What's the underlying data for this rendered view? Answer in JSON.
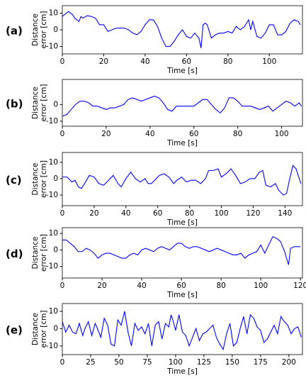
{
  "chart_data": [
    {
      "type": "line",
      "label": "(a)",
      "xlabel": "Time [s]",
      "ylabel": [
        "Distance",
        "error [cm]"
      ],
      "x": [
        0,
        2,
        3,
        5,
        6,
        8,
        9,
        10,
        12,
        14,
        16,
        18,
        20,
        22,
        24,
        26,
        28,
        30,
        32,
        34,
        36,
        38,
        40,
        42,
        44,
        46,
        48,
        50,
        52,
        54,
        56,
        58,
        60,
        62,
        64,
        66,
        67,
        68,
        69,
        70,
        72,
        74,
        76,
        78,
        80,
        82,
        84,
        86,
        88,
        90,
        91,
        92,
        94,
        96,
        98,
        100,
        102,
        104,
        106,
        108,
        110,
        112,
        114,
        115
      ],
      "series": [
        {
          "color": "#0000ff",
          "values": [
            8,
            10,
            11,
            9,
            7,
            5,
            8,
            7,
            8.5,
            8,
            7,
            3,
            3,
            -1,
            0,
            1,
            1,
            1,
            0,
            -2,
            -3,
            -1,
            3,
            6,
            6,
            2,
            -5,
            -10,
            -10,
            -7,
            -3,
            0,
            -4,
            -5,
            -2,
            -5,
            -11,
            3,
            4,
            3,
            -5,
            -3,
            -2,
            -2,
            -1,
            -2,
            2,
            0,
            2,
            6,
            0,
            5,
            -4,
            -5,
            -2,
            3,
            3,
            -3,
            -3,
            -1,
            4,
            6,
            5,
            3
          ]
        }
      ],
      "xlim": [
        0,
        116
      ],
      "ylim": [
        -14.5,
        14.5
      ],
      "xticks": [
        0,
        20,
        40,
        60,
        80,
        100
      ],
      "yticks": [
        -10,
        0,
        10
      ]
    },
    {
      "type": "line",
      "label": "(b)",
      "xlabel": "Time [s]",
      "ylabel": [
        "Distance",
        "error [cm]"
      ],
      "x": [
        0,
        2,
        4,
        6,
        8,
        10,
        12,
        14,
        16,
        18,
        20,
        22,
        24,
        26,
        28,
        30,
        32,
        34,
        36,
        38,
        40,
        42,
        44,
        46,
        48,
        50,
        52,
        54,
        56,
        58,
        60,
        62,
        64,
        66,
        68,
        70,
        72,
        74,
        76,
        78,
        80,
        82,
        84,
        86,
        88,
        90,
        92,
        94,
        96,
        98,
        100,
        102,
        104,
        106,
        108,
        109
      ],
      "series": [
        {
          "color": "#0000ff",
          "values": [
            -7,
            -6,
            -3,
            0,
            2,
            2,
            1,
            -1,
            -1,
            -2,
            -3,
            -2,
            -2,
            -1,
            0,
            3,
            4,
            3,
            2,
            3,
            4,
            5,
            4,
            1,
            -3,
            -4,
            -1,
            -1,
            -1,
            -1,
            -1,
            1,
            3,
            3,
            0,
            -3,
            -5,
            -2,
            4,
            4,
            2,
            -1,
            -1,
            -1,
            -2,
            -3,
            -2,
            -1,
            -4,
            -2,
            0,
            2,
            1,
            -1,
            1,
            -1
          ]
        }
      ],
      "xlim": [
        0,
        109.5
      ],
      "ylim": [
        -13,
        15
      ],
      "xticks": [
        0,
        20,
        40,
        60,
        80,
        100
      ],
      "yticks": [
        -10,
        0
      ]
    },
    {
      "type": "line",
      "label": "(c)",
      "xlabel": "Time [s]",
      "ylabel": [
        "Distance",
        "error [cm]"
      ],
      "x": [
        0,
        3,
        6,
        8,
        10,
        12,
        14,
        17,
        20,
        23,
        26,
        29,
        32,
        35,
        37,
        40,
        43,
        46,
        49,
        52,
        54,
        56,
        58,
        61,
        64,
        67,
        70,
        72,
        75,
        78,
        81,
        84,
        87,
        90,
        92,
        95,
        98,
        100,
        103,
        106,
        109,
        112,
        115,
        118,
        121,
        124,
        126,
        128,
        131,
        134,
        136,
        139,
        141,
        143,
        145,
        147,
        149,
        150
      ],
      "series": [
        {
          "color": "#0000ff",
          "values": [
            1,
            1,
            -2,
            -1,
            -5,
            -6,
            -3,
            2,
            1,
            -3,
            -4,
            -1,
            2,
            -3,
            -5,
            0,
            4,
            0,
            -2,
            0,
            -3,
            -3,
            -1,
            2,
            3,
            1,
            -3,
            -1,
            1,
            -2,
            -1,
            -1,
            -3,
            0,
            5,
            5,
            6,
            1,
            3,
            6,
            2,
            -3,
            -2,
            0,
            0,
            4,
            5,
            -4,
            -5,
            -3,
            -7,
            -10,
            -9,
            0,
            8,
            6,
            0,
            -3
          ]
        }
      ],
      "xlim": [
        0,
        151
      ],
      "ylim": [
        -16.5,
        16
      ],
      "xticks": [
        0,
        20,
        40,
        60,
        80,
        100,
        120,
        140
      ],
      "yticks": [
        -10,
        0,
        10
      ]
    },
    {
      "type": "line",
      "label": "(d)",
      "xlabel": "Time [s]",
      "ylabel": [
        "Distance",
        "error [cm]"
      ],
      "x": [
        0,
        2,
        4,
        6,
        8,
        10,
        12,
        14,
        16,
        18,
        20,
        22,
        24,
        26,
        28,
        30,
        32,
        34,
        36,
        38,
        40,
        42,
        44,
        46,
        48,
        50,
        52,
        54,
        56,
        58,
        60,
        62,
        64,
        66,
        68,
        70,
        72,
        74,
        76,
        78,
        80,
        82,
        84,
        86,
        88,
        90,
        92,
        94,
        96,
        98,
        100,
        102,
        104,
        106,
        108,
        110,
        112,
        114,
        115,
        117,
        120
      ],
      "series": [
        {
          "color": "#0000ff",
          "values": [
            6,
            6,
            4,
            2,
            -1,
            -1,
            1,
            0,
            -2,
            -5,
            -3,
            -2,
            -2,
            -3,
            -4,
            -5,
            -5,
            -3,
            -2,
            -3,
            0,
            1,
            0,
            -1,
            1,
            2,
            1,
            0,
            2,
            4,
            4,
            2,
            1,
            2,
            2,
            1,
            0,
            -1,
            0,
            1,
            0,
            -1,
            -2,
            -3,
            -3,
            -2,
            -5,
            -3,
            -2,
            -1,
            3,
            -2,
            3,
            8,
            7,
            5,
            -1,
            -9,
            1,
            2,
            2
          ]
        }
      ],
      "xlim": [
        0,
        121
      ],
      "ylim": [
        -17,
        13.5
      ],
      "xticks": [
        0,
        20,
        40,
        60,
        80,
        100,
        120
      ],
      "yticks": [
        -10,
        0,
        10
      ]
    },
    {
      "type": "line",
      "label": "(e)",
      "xlabel": "Time [s]",
      "ylabel": [
        "Distance",
        "error [cm]"
      ],
      "x": [
        0,
        3,
        6,
        9,
        12,
        15,
        18,
        20,
        23,
        26,
        29,
        31,
        34,
        37,
        40,
        43,
        46,
        49,
        52,
        55,
        58,
        61,
        64,
        67,
        70,
        73,
        76,
        79,
        82,
        85,
        88,
        91,
        94,
        96,
        98,
        100,
        103,
        106,
        109,
        112,
        115,
        118,
        121,
        124,
        127,
        130,
        133,
        136,
        139,
        142,
        145,
        148,
        151,
        154,
        157,
        160,
        163,
        166,
        169,
        172,
        175,
        178,
        181,
        184,
        187,
        190,
        193,
        196,
        199,
        202,
        205,
        208,
        211
      ],
      "series": [
        {
          "color": "#0000ff",
          "values": [
            4,
            -2,
            2,
            -2,
            -3,
            3,
            -4,
            0,
            4,
            -4,
            3,
            0,
            -5,
            6,
            2,
            -9,
            -10,
            5,
            2,
            10,
            -2,
            -10,
            3,
            -1,
            1,
            -3,
            3,
            -10,
            2,
            4,
            -6,
            3,
            1,
            8,
            4,
            -1,
            8,
            -2,
            -4,
            -10,
            -5,
            0,
            -7,
            -3,
            -2,
            0,
            2,
            -5,
            -9,
            -12,
            -3,
            3,
            -10,
            -8,
            0,
            7,
            -3,
            8,
            6,
            1,
            -1,
            -8,
            -6,
            -2,
            2,
            -3,
            7,
            4,
            2,
            -3,
            0,
            1,
            -5
          ]
        }
      ],
      "xlim": [
        0,
        212
      ],
      "ylim": [
        -15,
        14.5
      ],
      "xticks": [
        0,
        25,
        50,
        75,
        100,
        125,
        150,
        175,
        200
      ],
      "yticks": [
        -10,
        0,
        10
      ]
    }
  ]
}
